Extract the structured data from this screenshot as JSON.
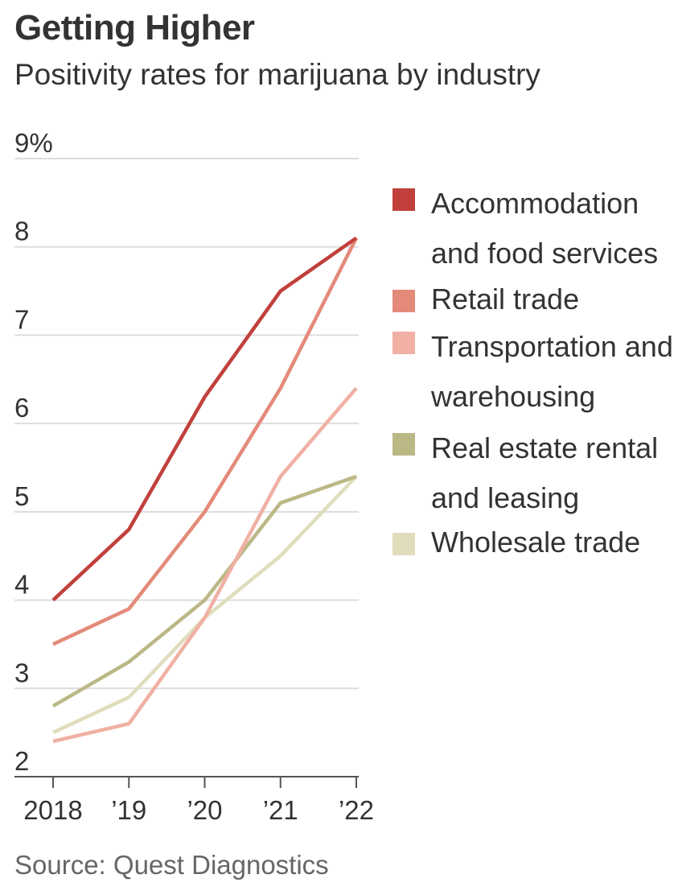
{
  "title": "Getting Higher",
  "subtitle": "Positivity rates for marijuana by industry",
  "source": "Source: Quest Diagnostics",
  "chart_data": {
    "type": "line",
    "x": [
      2018,
      2019,
      2020,
      2021,
      2022
    ],
    "x_tick_labels": [
      "2018",
      "’19",
      "’20",
      "’21",
      "’22"
    ],
    "y_tick_labels": [
      "2",
      "3",
      "4",
      "5",
      "6",
      "7",
      "8",
      "9%"
    ],
    "y_ticks": [
      2,
      3,
      4,
      5,
      6,
      7,
      8,
      9
    ],
    "ylim": [
      2,
      9
    ],
    "grid": true,
    "legend_position": "right",
    "series": [
      {
        "name": "Accommodation and food services",
        "color": "#c1403c",
        "values": [
          4.0,
          4.8,
          6.3,
          7.5,
          8.1
        ]
      },
      {
        "name": "Retail trade",
        "color": "#e48a7a",
        "values": [
          3.5,
          3.9,
          5.0,
          6.4,
          8.1
        ]
      },
      {
        "name": "Transportation and warehousing",
        "color": "#f0b0a3",
        "values": [
          2.4,
          2.6,
          3.8,
          5.4,
          6.4
        ]
      },
      {
        "name": "Real estate rental and leasing",
        "color": "#bcb886",
        "values": [
          2.8,
          3.3,
          4.0,
          5.1,
          5.4
        ]
      },
      {
        "name": "Wholesale trade",
        "color": "#e0ddbd",
        "values": [
          2.5,
          2.9,
          3.8,
          4.5,
          5.4
        ]
      }
    ]
  },
  "legend": [
    {
      "label": "Accommodation and food services",
      "color": "#c1403c"
    },
    {
      "label": "Retail trade",
      "color": "#e48a7a"
    },
    {
      "label": "Transportation and warehousing",
      "color": "#f0b0a3"
    },
    {
      "label": "Real estate rental and leasing",
      "color": "#bcb886"
    },
    {
      "label": "Wholesale trade",
      "color": "#e0ddbd"
    }
  ]
}
